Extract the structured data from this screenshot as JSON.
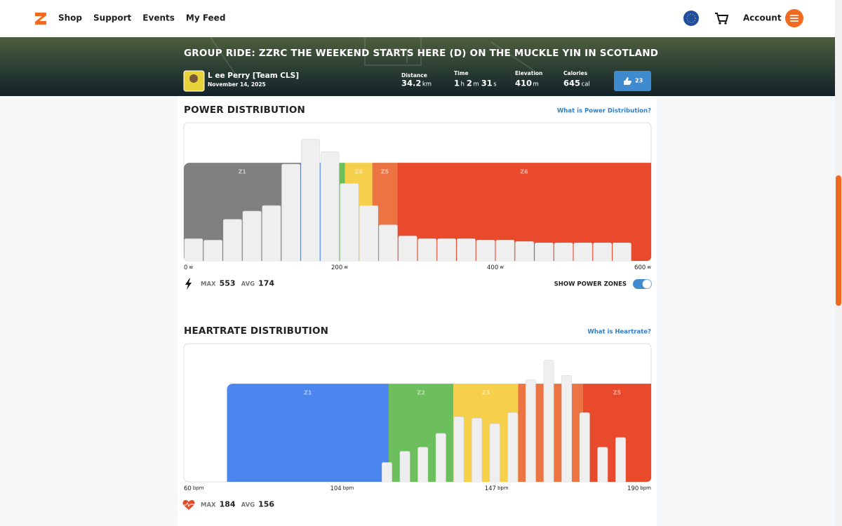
{
  "nav": {
    "links": [
      "Shop",
      "Support",
      "Events",
      "My Feed"
    ],
    "account": "Account"
  },
  "activity": {
    "title": "GROUP RIDE: ZZRC THE WEEKEND STARTS HERE (D) ON THE MUCKLE YIN IN SCOTLAND",
    "rider": "L ee Perry [Team CLS]",
    "date": "November 14, 2025",
    "stats": [
      {
        "label": "Distance",
        "parts": [
          {
            "value": 34.2,
            "unit": "km"
          }
        ]
      },
      {
        "label": "Time",
        "parts": [
          {
            "value": 1,
            "unit": "h"
          },
          {
            "value": 2,
            "unit": "m"
          },
          {
            "value": 31,
            "unit": "s"
          }
        ]
      },
      {
        "label": "Elevation",
        "parts": [
          {
            "value": 410,
            "unit": "m"
          }
        ]
      },
      {
        "label": "Calories",
        "parts": [
          {
            "value": 645,
            "unit": "cal"
          }
        ]
      }
    ],
    "likes": 23
  },
  "chart_data": [
    {
      "type": "histogram",
      "title": "POWER DISTRIBUTION",
      "help_link": "What is Power Distribution?",
      "bins": [
        0,
        25,
        50,
        75,
        100,
        125,
        150,
        175,
        200,
        225,
        250,
        275,
        300,
        325,
        350,
        375,
        400,
        425,
        450,
        475,
        500,
        525,
        550,
        575
      ],
      "values": [
        16,
        15,
        30,
        36,
        40,
        70,
        88,
        79,
        56,
        40,
        26,
        18,
        16,
        16,
        16,
        15,
        15,
        14,
        13,
        13,
        13,
        13,
        13
      ],
      "color": "#efefef",
      "xlim": [
        0,
        600
      ],
      "xticks": [
        0,
        200,
        400,
        600
      ],
      "x_unit": "w",
      "ylim": [
        0,
        100
      ],
      "show_zones": true,
      "zones": [
        {
          "name": "Z1",
          "from": 0,
          "to": 150,
          "color": "#808080"
        },
        {
          "name": null,
          "from": 150,
          "to": 199,
          "color": "#4a86ee"
        },
        {
          "name": null,
          "from": 199,
          "to": 207,
          "color": "#6dbe5c"
        },
        {
          "name": "Z4",
          "from": 207,
          "to": 242,
          "color": "#f6cf4b"
        },
        {
          "name": "Z5",
          "from": 242,
          "to": 274,
          "color": "#ec7443"
        },
        {
          "name": "Z6",
          "from": 274,
          "to": 600,
          "color": "#e84a2b"
        }
      ],
      "stats": [
        {
          "label": "MAX",
          "value": 553
        },
        {
          "label": "AVG",
          "value": 174
        }
      ],
      "toggle_label": "SHOW POWER ZONES"
    },
    {
      "type": "histogram",
      "title": "HEARTRATE DISTRIBUTION",
      "help_link": "What is Heartrate?",
      "bins": [
        114,
        119,
        124,
        129,
        134,
        139,
        144,
        149,
        154,
        159,
        164,
        169,
        174,
        179,
        184
      ],
      "values": [
        14,
        22,
        25,
        35,
        47,
        46,
        42,
        50,
        74,
        88,
        77,
        50,
        25,
        32
      ],
      "color": "#efefef",
      "xlim": [
        60,
        190
      ],
      "xticks": [
        60,
        104,
        147,
        190
      ],
      "x_unit": "bpm",
      "ylim": [
        0,
        100
      ],
      "show_zones": true,
      "zones": [
        {
          "name": "Z1",
          "from": 72,
          "to": 117,
          "color": "#4a86ee"
        },
        {
          "name": "Z2",
          "from": 117,
          "to": 135,
          "color": "#6dbe5c"
        },
        {
          "name": "Z3",
          "from": 135,
          "to": 153,
          "color": "#f6cf4b"
        },
        {
          "name": null,
          "from": 153,
          "to": 171,
          "color": "#ec7443"
        },
        {
          "name": "Z5",
          "from": 171,
          "to": 190,
          "color": "#e84a2b"
        }
      ],
      "stats": [
        {
          "label": "MAX",
          "value": 184
        },
        {
          "label": "AVG",
          "value": 156
        }
      ]
    }
  ]
}
